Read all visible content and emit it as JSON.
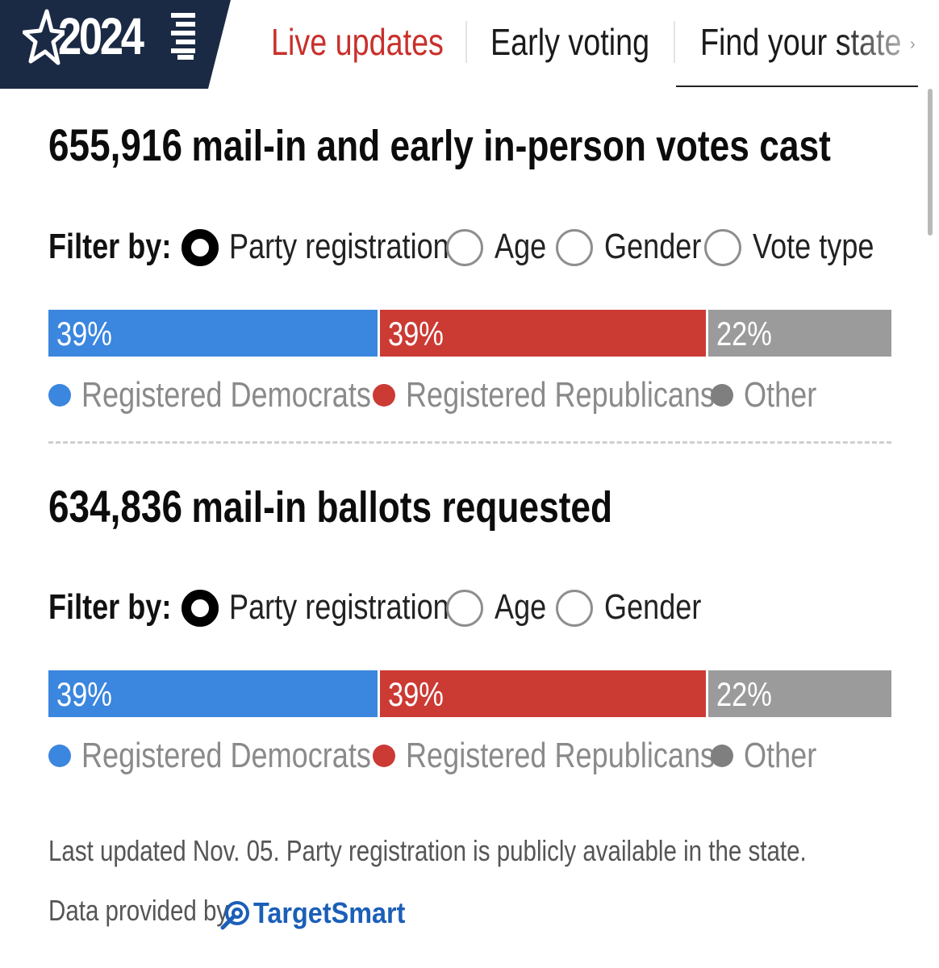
{
  "header": {
    "logo_year": "2024",
    "tabs": [
      {
        "label": "Live updates"
      },
      {
        "label": "Early voting"
      },
      {
        "label": "Find your state"
      }
    ]
  },
  "sections": [
    {
      "count": "655,916",
      "title": "mail-in and early in-person votes cast",
      "filter_label": "Filter by:",
      "filters": [
        "Party registration",
        "Age",
        "Gender",
        "Vote type"
      ],
      "selected_filter": "Party registration"
    },
    {
      "count": "634,836",
      "title": "mail-in ballots requested",
      "filter_label": "Filter by:",
      "filters": [
        "Party registration",
        "Age",
        "Gender"
      ],
      "selected_filter": "Party registration"
    }
  ],
  "chart_data": [
    {
      "type": "bar",
      "stacked": true,
      "orientation": "horizontal",
      "categories": [
        "Registered Democrats",
        "Registered Republicans",
        "Other"
      ],
      "values": [
        39,
        39,
        22
      ],
      "labels": [
        "39%",
        "39%",
        "22%"
      ],
      "colors": [
        "#3b86de",
        "#cc3a34",
        "#9b9b9b"
      ]
    },
    {
      "type": "bar",
      "stacked": true,
      "orientation": "horizontal",
      "categories": [
        "Registered Democrats",
        "Registered Republicans",
        "Other"
      ],
      "values": [
        39,
        39,
        22
      ],
      "labels": [
        "39%",
        "39%",
        "22%"
      ],
      "colors": [
        "#3b86de",
        "#cc3a34",
        "#9b9b9b"
      ]
    }
  ],
  "footer": {
    "note": "Last updated Nov. 05. Party registration is publicly available in the state.",
    "provided_by": "Data provided by",
    "provider": "TargetSmart"
  },
  "colors": {
    "nav_accent": "#c8302c",
    "logo_bg": "#1b2a44",
    "provider_brand": "#1b5fb8"
  }
}
